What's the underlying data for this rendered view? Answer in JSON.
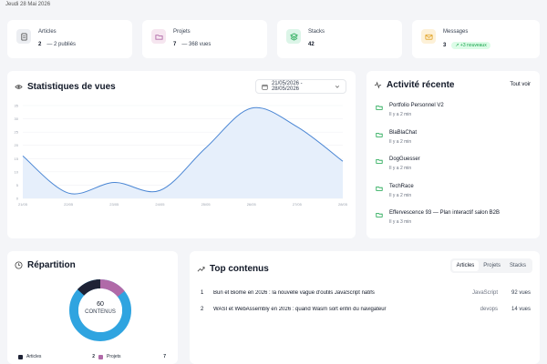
{
  "date": "Jeudi 28 Mai 2026",
  "stats": [
    {
      "label": "Articles",
      "value": "2",
      "sub": "— 2 publiés",
      "icon": "document-icon"
    },
    {
      "label": "Projets",
      "value": "7",
      "sub": "— 368 vues",
      "icon": "folder-icon"
    },
    {
      "label": "Stacks",
      "value": "42",
      "sub": "",
      "icon": "layers-icon"
    },
    {
      "label": "Messages",
      "value": "3",
      "badge": "↗ +3 nouveaux",
      "icon": "mail-icon"
    }
  ],
  "views": {
    "title": "Statistiques de vues",
    "range": "21/05/2026 - 28/05/2026"
  },
  "chart_data": {
    "type": "area",
    "x": [
      "21/05",
      "22/05",
      "23/05",
      "24/05",
      "25/05",
      "26/05",
      "27/05",
      "28/05"
    ],
    "values": [
      16,
      2,
      6,
      3,
      19,
      34,
      27,
      14
    ],
    "yticks": [
      "0",
      "5",
      "10",
      "15",
      "20",
      "25",
      "30",
      "35"
    ],
    "ylim": [
      0,
      35
    ],
    "color": "#4a86d4"
  },
  "activity": {
    "title": "Activité récente",
    "see_all": "Tout voir",
    "items": [
      {
        "name": "Portfolio Personnel V2",
        "time": "Il y a 2 min"
      },
      {
        "name": "BlaBlaChat",
        "time": "Il y a 2 min"
      },
      {
        "name": "DogGuesser",
        "time": "Il y a 2 min"
      },
      {
        "name": "TechRace",
        "time": "Il y a 2 min"
      },
      {
        "name": "Effervescence 93 — Plan interactif salon B2B",
        "time": "Il y a 3 min"
      }
    ]
  },
  "repartition": {
    "title": "Répartition",
    "total": "60",
    "total_label": "CONTENUS",
    "legend": [
      {
        "name": "Articles",
        "value": "2",
        "color": "#1e2235"
      },
      {
        "name": "Projets",
        "value": "7",
        "color": "#b06aa8"
      }
    ]
  },
  "top": {
    "title": "Top contenus",
    "tabs": [
      "Articles",
      "Projets",
      "Stacks"
    ],
    "rows": [
      {
        "rank": "1",
        "title": "Bun et Biome en 2026 : la nouvelle vague d'outils JavaScript natifs",
        "category": "JavaScript",
        "views": "92 vues"
      },
      {
        "rank": "2",
        "title": "WASI et WebAssembly en 2026 : quand Wasm sort enfin du navigateur",
        "category": "devops",
        "views": "14 vues"
      }
    ]
  }
}
